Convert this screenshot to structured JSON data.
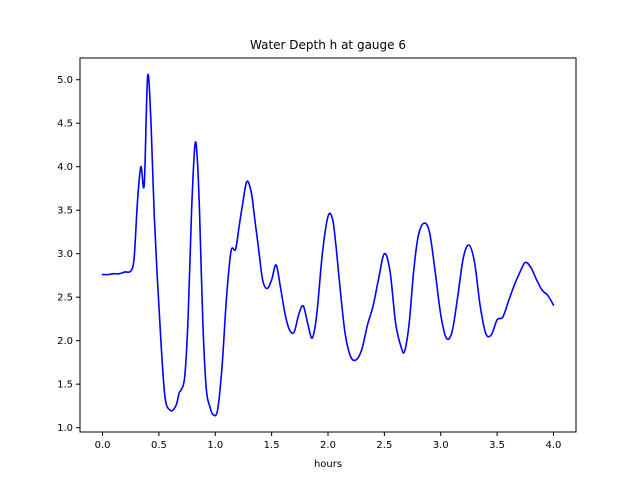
{
  "chart_data": {
    "type": "line",
    "title": "Water Depth h at gauge 6",
    "xlabel": "hours",
    "ylabel": "",
    "xlim": [
      -0.2,
      4.2
    ],
    "ylim": [
      0.95,
      5.25
    ],
    "xticks": [
      0.0,
      0.5,
      1.0,
      1.5,
      2.0,
      2.5,
      3.0,
      3.5,
      4.0
    ],
    "xtick_labels": [
      "0.0",
      "0.5",
      "1.0",
      "1.5",
      "2.0",
      "2.5",
      "3.0",
      "3.5",
      "4.0"
    ],
    "yticks": [
      1.0,
      1.5,
      2.0,
      2.5,
      3.0,
      3.5,
      4.0,
      4.5,
      5.0
    ],
    "ytick_labels": [
      "1.0",
      "1.5",
      "2.0",
      "2.5",
      "3.0",
      "3.5",
      "4.0",
      "4.5",
      "5.0"
    ],
    "grid": false,
    "series": [
      {
        "color": "#0000ff",
        "x": [
          0.0,
          0.05,
          0.1,
          0.15,
          0.2,
          0.25,
          0.28,
          0.31,
          0.34,
          0.37,
          0.4,
          0.43,
          0.46,
          0.5,
          0.55,
          0.6,
          0.65,
          0.68,
          0.7,
          0.73,
          0.76,
          0.79,
          0.82,
          0.84,
          0.86,
          0.89,
          0.92,
          0.95,
          0.98,
          1.02,
          1.06,
          1.1,
          1.14,
          1.18,
          1.21,
          1.24,
          1.28,
          1.32,
          1.35,
          1.38,
          1.42,
          1.46,
          1.5,
          1.54,
          1.58,
          1.62,
          1.66,
          1.7,
          1.74,
          1.78,
          1.82,
          1.86,
          1.9,
          1.95,
          2.0,
          2.04,
          2.07,
          2.1,
          2.15,
          2.2,
          2.25,
          2.3,
          2.35,
          2.4,
          2.45,
          2.5,
          2.55,
          2.6,
          2.65,
          2.68,
          2.72,
          2.76,
          2.8,
          2.85,
          2.9,
          2.95,
          3.0,
          3.05,
          3.1,
          3.15,
          3.2,
          3.25,
          3.3,
          3.35,
          3.4,
          3.45,
          3.5,
          3.55,
          3.6,
          3.65,
          3.7,
          3.75,
          3.8,
          3.85,
          3.9,
          3.95,
          4.0
        ],
        "values": [
          2.76,
          2.76,
          2.77,
          2.77,
          2.79,
          2.8,
          2.95,
          3.6,
          4.0,
          3.8,
          5.04,
          4.5,
          3.4,
          2.4,
          1.4,
          1.2,
          1.25,
          1.4,
          1.44,
          1.6,
          2.3,
          3.5,
          4.25,
          4.1,
          3.5,
          2.2,
          1.45,
          1.25,
          1.15,
          1.2,
          1.7,
          2.5,
          3.03,
          3.05,
          3.3,
          3.55,
          3.83,
          3.7,
          3.4,
          3.1,
          2.7,
          2.6,
          2.7,
          2.87,
          2.6,
          2.3,
          2.12,
          2.1,
          2.3,
          2.4,
          2.2,
          2.03,
          2.3,
          3.0,
          3.43,
          3.4,
          3.1,
          2.7,
          2.1,
          1.82,
          1.78,
          1.9,
          2.18,
          2.4,
          2.72,
          3.0,
          2.8,
          2.2,
          1.92,
          1.88,
          2.2,
          2.8,
          3.2,
          3.35,
          3.25,
          2.8,
          2.3,
          2.03,
          2.1,
          2.5,
          2.95,
          3.1,
          2.9,
          2.4,
          2.08,
          2.07,
          2.24,
          2.27,
          2.45,
          2.63,
          2.78,
          2.9,
          2.84,
          2.7,
          2.58,
          2.52,
          2.41
        ]
      }
    ]
  }
}
